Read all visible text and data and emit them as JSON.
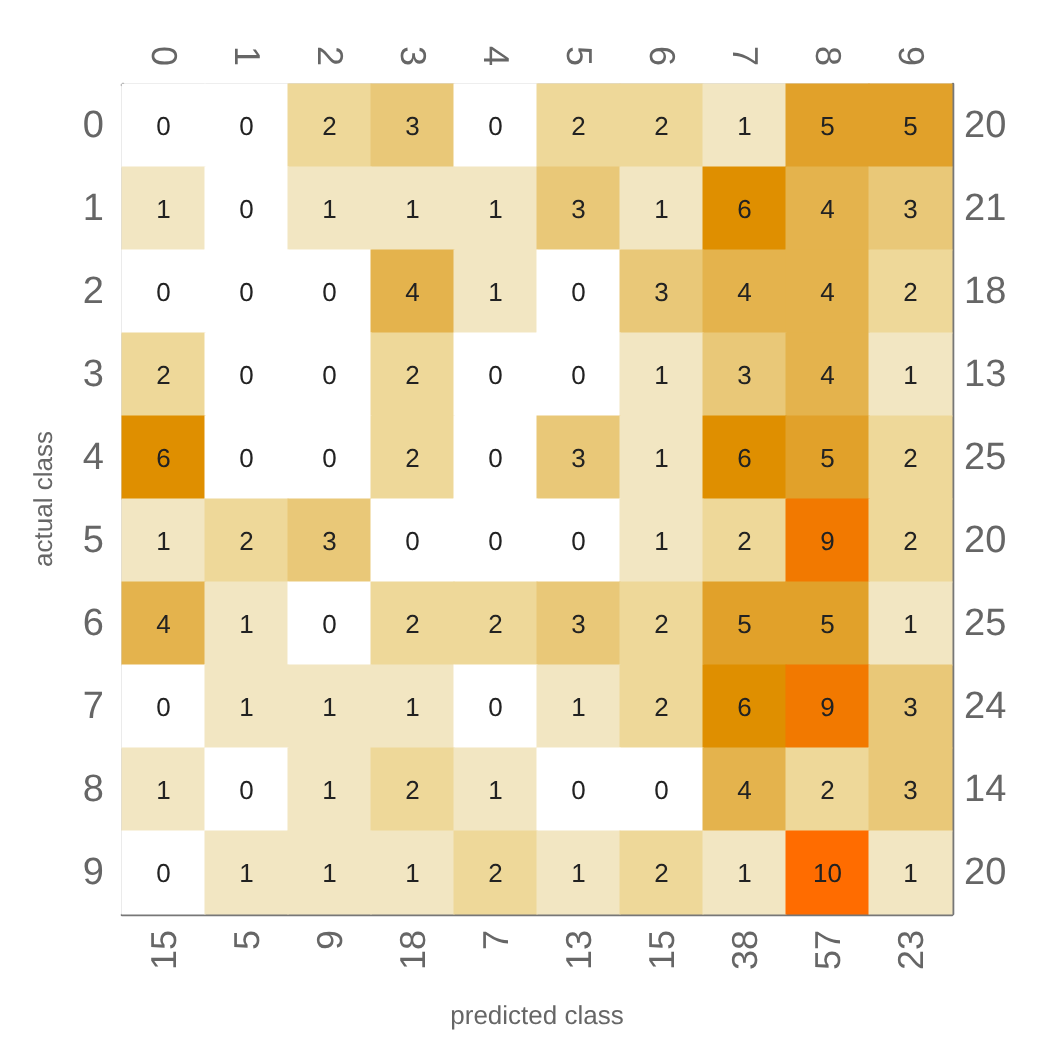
{
  "chart_data": {
    "type": "heatmap",
    "xlabel": "predicted class",
    "ylabel": "actual class",
    "categories": [
      "0",
      "1",
      "2",
      "3",
      "4",
      "5",
      "6",
      "7",
      "8",
      "9"
    ],
    "y_categories": [
      "0",
      "1",
      "2",
      "3",
      "4",
      "5",
      "6",
      "7",
      "8",
      "9"
    ],
    "y2_categories": [
      "20",
      "21",
      "18",
      "13",
      "25",
      "20",
      "25",
      "24",
      "14",
      "20"
    ],
    "cells": [
      [
        0,
        0,
        2,
        3,
        0,
        2,
        2,
        1,
        5,
        5
      ],
      [
        1,
        0,
        1,
        1,
        1,
        3,
        1,
        6,
        4,
        3
      ],
      [
        0,
        0,
        0,
        4,
        1,
        0,
        3,
        4,
        4,
        2
      ],
      [
        2,
        0,
        0,
        2,
        0,
        0,
        1,
        3,
        4,
        1
      ],
      [
        6,
        0,
        0,
        2,
        0,
        3,
        1,
        6,
        5,
        2
      ],
      [
        1,
        2,
        3,
        0,
        0,
        0,
        1,
        2,
        9,
        2
      ],
      [
        4,
        1,
        0,
        2,
        2,
        3,
        2,
        5,
        5,
        1
      ],
      [
        0,
        1,
        1,
        1,
        0,
        1,
        2,
        6,
        9,
        3
      ],
      [
        1,
        0,
        1,
        2,
        1,
        0,
        0,
        4,
        2,
        3
      ],
      [
        0,
        1,
        1,
        1,
        2,
        1,
        2,
        1,
        10,
        1
      ]
    ],
    "colors": [
      "#ffffff",
      "#ffffff",
      "#eed899",
      "#e9c878",
      "#ffffff",
      "#eed899",
      "#eed899",
      "#f2e6c2",
      "#e1a12a",
      "#e1a12a",
      "#f2e6c2",
      "#ffffff",
      "#f2e6c2",
      "#f2e6c2",
      "#f2e6c2",
      "#e9c878",
      "#f2e6c2",
      "#df8f00",
      "#e4b34d",
      "#e9c878",
      "#ffffff",
      "#ffffff",
      "#ffffff",
      "#e4b34d",
      "#f2e6c2",
      "#ffffff",
      "#e9c878",
      "#e4b34d",
      "#e4b34d",
      "#eed899",
      "#eed899",
      "#ffffff",
      "#ffffff",
      "#eed899",
      "#ffffff",
      "#ffffff",
      "#f2e6c2",
      "#e9c878",
      "#e4b34d",
      "#f2e6c2",
      "#df8f00",
      "#ffffff",
      "#ffffff",
      "#eed899",
      "#ffffff",
      "#e9c878",
      "#f2e6c2",
      "#df8f00",
      "#e1a12a",
      "#eed899",
      "#f2e6c2",
      "#eed899",
      "#e9c878",
      "#ffffff",
      "#ffffff",
      "#ffffff",
      "#f2e6c2",
      "#eed899",
      "#f27900",
      "#eed899",
      "#e4b34d",
      "#f2e6c2",
      "#ffffff",
      "#eed899",
      "#eed899",
      "#e9c878",
      "#eed899",
      "#e1a12a",
      "#e1a12a",
      "#f2e6c2",
      "#ffffff",
      "#f2e6c2",
      "#f2e6c2",
      "#f2e6c2",
      "#ffffff",
      "#f2e6c2",
      "#eed899",
      "#df8f00",
      "#f27900",
      "#e9c878",
      "#f2e6c2",
      "#ffffff",
      "#f2e6c2",
      "#eed899",
      "#f2e6c2",
      "#ffffff",
      "#ffffff",
      "#e4b34d",
      "#eed899",
      "#e9c878",
      "#ffffff",
      "#f2e6c2",
      "#f2e6c2",
      "#f2e6c2",
      "#eed899",
      "#f2e6c2",
      "#eed899",
      "#f2e6c2",
      "#ff6c00",
      "#f2e6c2"
    ],
    "data_labels": true,
    "annotations": [
      "15",
      "5",
      "9",
      "18",
      "7",
      "13",
      "15",
      "38",
      "57",
      "23"
    ]
  }
}
